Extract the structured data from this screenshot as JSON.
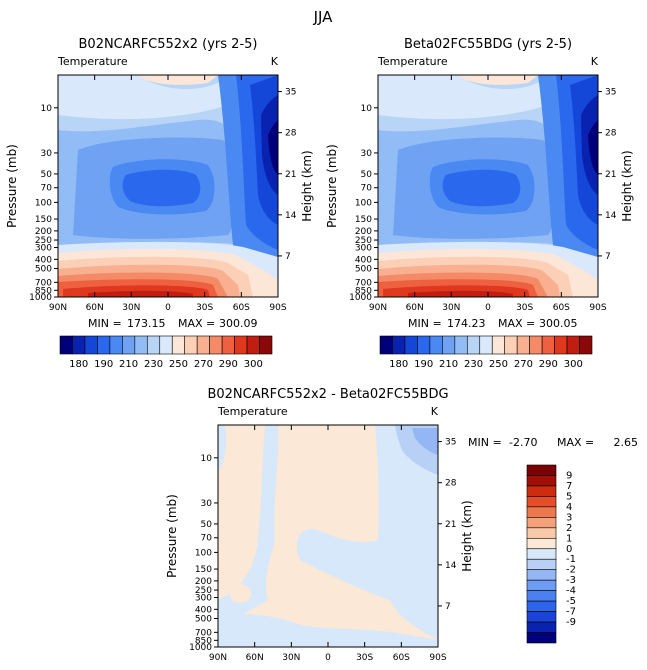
{
  "page": {
    "title": "JJA"
  },
  "colors": {
    "abs_palette": [
      "#00007a",
      "#0a22b0",
      "#1446d8",
      "#2a68ee",
      "#4a88f2",
      "#6fa2f2",
      "#92bcf5",
      "#b8d4f7",
      "#d9e8fb",
      "#fbe6d8",
      "#fbd0b6",
      "#f8b090",
      "#f48a66",
      "#ee6040",
      "#e0381e",
      "#c01e10",
      "#8a0808"
    ],
    "diff_palette": [
      "#00007a",
      "#0a22b0",
      "#1a44d6",
      "#2c64ea",
      "#4a80f0",
      "#6e9cf2",
      "#94b6f4",
      "#b8d0f6",
      "#d6e8fa",
      "#fbe8d6",
      "#f8c8a8",
      "#f4a07a",
      "#ee784e",
      "#e44e28",
      "#cc2c10",
      "#a01008",
      "#7a0404"
    ]
  },
  "chart_data": [
    {
      "type": "contour",
      "id": "left",
      "title": "B02NCARFC552x2 (yrs 2-5)",
      "subtitle": "Temperature",
      "units": "K",
      "xlabel": "",
      "ylabel": "Pressure (mb)",
      "ylabel_right": "Height (km)",
      "x_ticks": [
        "90N",
        "60N",
        "30N",
        "0",
        "30S",
        "60S",
        "90S"
      ],
      "y_ticks": [
        "10",
        "30",
        "50",
        "70",
        "100",
        "150",
        "200",
        "250",
        "300",
        "400",
        "500",
        "700",
        "850",
        "1000"
      ],
      "y_ticks_right": [
        "35",
        "28",
        "21",
        "14",
        "7"
      ],
      "stats": {
        "min_label": "MIN =",
        "min": "173.15",
        "max_label": "MAX =",
        "max": "300.09"
      },
      "colorbar_labels": [
        "180",
        "190",
        "210",
        "230",
        "250",
        "270",
        "290",
        "300"
      ]
    },
    {
      "type": "contour",
      "id": "right",
      "title": "Beta02FC55BDG (yrs 2-5)",
      "subtitle": "Temperature",
      "units": "K",
      "xlabel": "",
      "ylabel": "Pressure (mb)",
      "ylabel_right": "Height (km)",
      "x_ticks": [
        "90N",
        "60N",
        "30N",
        "0",
        "30S",
        "60S",
        "90S"
      ],
      "y_ticks": [
        "10",
        "30",
        "50",
        "70",
        "100",
        "150",
        "200",
        "250",
        "300",
        "400",
        "500",
        "700",
        "850",
        "1000"
      ],
      "y_ticks_right": [
        "35",
        "28",
        "21",
        "14",
        "7"
      ],
      "stats": {
        "min_label": "MIN =",
        "min": "174.23",
        "max_label": "MAX =",
        "max": "300.05"
      },
      "colorbar_labels": [
        "180",
        "190",
        "210",
        "230",
        "250",
        "270",
        "290",
        "300"
      ]
    },
    {
      "type": "contour",
      "id": "diff",
      "title": "B02NCARFC552x2 - Beta02FC55BDG",
      "subtitle": "Temperature",
      "units": "K",
      "xlabel": "",
      "ylabel": "Pressure (mb)",
      "ylabel_right": "Height (km)",
      "x_ticks": [
        "90N",
        "60N",
        "30N",
        "0",
        "30S",
        "60S",
        "90S"
      ],
      "y_ticks": [
        "10",
        "30",
        "50",
        "70",
        "100",
        "150",
        "200",
        "250",
        "300",
        "400",
        "500",
        "700",
        "850",
        "1000"
      ],
      "y_ticks_right": [
        "35",
        "28",
        "21",
        "14",
        "7"
      ],
      "stats": {
        "min_label": "MIN =",
        "min": "-2.70",
        "max_label": "MAX =",
        "max": "2.65"
      },
      "colorbar_labels": [
        "9",
        "7",
        "5",
        "4",
        "3",
        "2",
        "1",
        "0",
        "-1",
        "-2",
        "-3",
        "-4",
        "-5",
        "-7",
        "-9"
      ]
    }
  ]
}
